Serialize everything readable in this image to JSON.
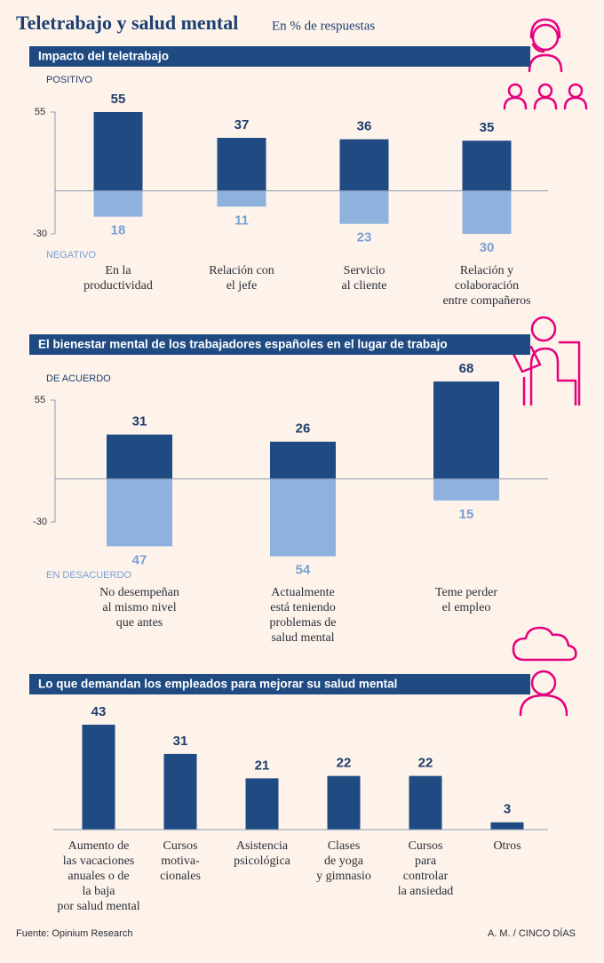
{
  "title": "Teletrabajo y salud mental",
  "subtitle": "En % de respuestas",
  "source": "Fuente: Opinium Research",
  "credit": "A. M. / CINCO DÍAS",
  "chart_data": [
    {
      "type": "diverging",
      "title": "Impacto del teletrabajo",
      "categories": [
        [
          "En la",
          "productividad"
        ],
        [
          "Relación con",
          "el jefe"
        ],
        [
          "Servicio",
          "al cliente"
        ],
        [
          "Relación y",
          "colaboración",
          "entre compañeros"
        ]
      ],
      "series": [
        {
          "name": "POSITIVO",
          "color": "#1f4b82",
          "values": [
            55,
            37,
            36,
            35
          ]
        },
        {
          "name": "NEGATIVO",
          "color": "#8eb1de",
          "values": [
            -18,
            -11,
            -23,
            -30
          ],
          "value_labels": [
            "18",
            "11",
            "23",
            "30"
          ]
        }
      ],
      "ylim": [
        -30,
        55
      ],
      "yticks": [
        55,
        -30
      ]
    },
    {
      "type": "diverging",
      "title": "El bienestar mental de los trabajadores españoles en el lugar de trabajo",
      "categories": [
        [
          "No desempeñan",
          "al mismo nivel",
          "que antes"
        ],
        [
          "Actualmente",
          "está teniendo",
          "problemas de",
          "salud mental"
        ],
        [
          "Teme perder",
          "el empleo"
        ]
      ],
      "series": [
        {
          "name": "DE ACUERDO",
          "color": "#1f4b82",
          "values": [
            31,
            26,
            68
          ]
        },
        {
          "name": "EN DESACUERDO",
          "color": "#8eb1de",
          "values": [
            -47,
            -54,
            -15
          ],
          "value_labels": [
            "47",
            "54",
            "15"
          ]
        }
      ],
      "ylim": [
        -30,
        55
      ],
      "yticks": [
        55,
        -30
      ]
    },
    {
      "type": "bar",
      "title": "Lo que demandan los empleados para mejorar su salud mental",
      "categories": [
        [
          "Aumento de",
          "las vacaciones",
          "anuales o de",
          "la baja",
          "por salud mental"
        ],
        [
          "Cursos",
          "motiva-",
          "cionales"
        ],
        [
          "Asistencia",
          "psicológica"
        ],
        [
          "Clases",
          "de yoga",
          "y gimnasio"
        ],
        [
          "Cursos",
          "para",
          "controlar",
          "la ansiedad"
        ],
        [
          "Otros"
        ]
      ],
      "values": [
        43,
        31,
        21,
        22,
        22,
        3
      ],
      "color": "#1f4b82"
    }
  ]
}
